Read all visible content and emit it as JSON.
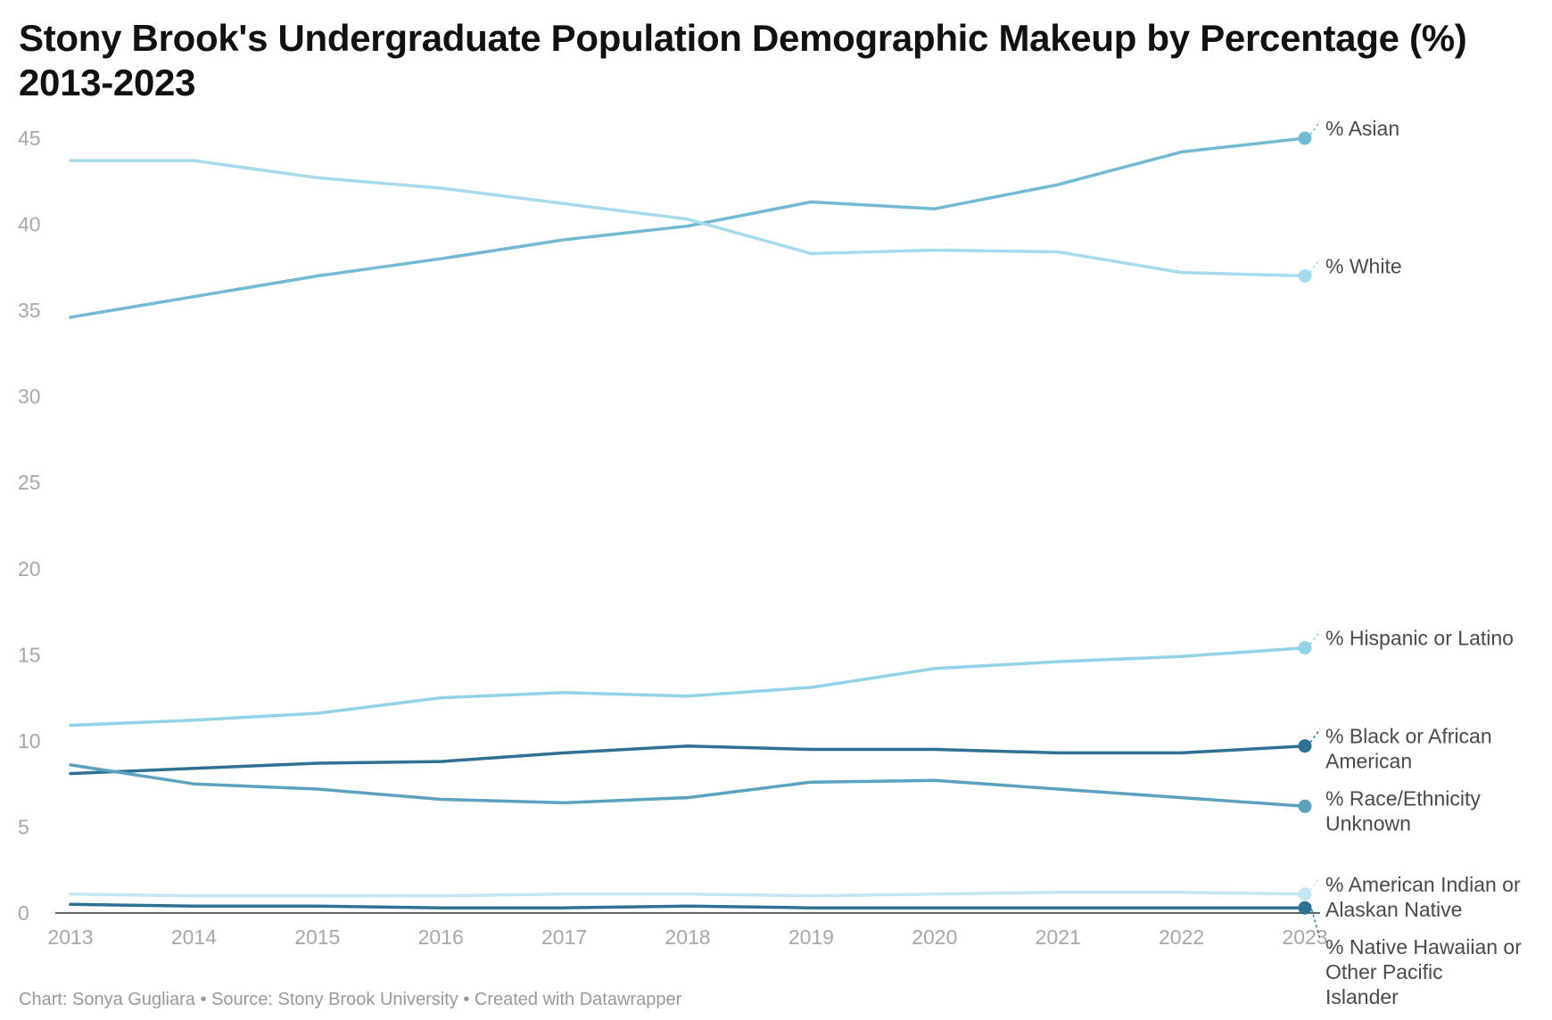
{
  "title_line1": "Stony Brook's Undergraduate Population Demographic Makeup by Percentage (%)",
  "title_line2": "2013-2023",
  "footer": "Chart: Sonya Gugliara • Source: Stony Brook University • Created with Datawrapper",
  "chart_data": {
    "type": "line",
    "title": "Stony Brook's Undergraduate Population Demographic Makeup by Percentage (%) 2013-2023",
    "xlabel": "",
    "ylabel": "",
    "x": [
      2013,
      2014,
      2015,
      2016,
      2017,
      2018,
      2019,
      2020,
      2021,
      2022,
      2023
    ],
    "ylim": [
      0,
      45
    ],
    "yticks": [
      0,
      5,
      10,
      15,
      20,
      25,
      30,
      35,
      40,
      45
    ],
    "grid": false,
    "series": [
      {
        "name": "% Asian",
        "label_lines": [
          "% Asian"
        ],
        "color": "#72b9d3",
        "values": [
          34.6,
          35.8,
          37.0,
          38.0,
          39.1,
          39.9,
          41.3,
          40.9,
          42.3,
          44.2,
          45.0
        ]
      },
      {
        "name": "% White",
        "label_lines": [
          "% White"
        ],
        "color": "#a6dbee",
        "values": [
          43.7,
          43.7,
          42.7,
          42.1,
          41.2,
          40.3,
          38.3,
          38.5,
          38.4,
          37.2,
          37.0
        ]
      },
      {
        "name": "% Hispanic or Latino",
        "label_lines": [
          "% Hispanic or Latino"
        ],
        "color": "#93d3ea",
        "values": [
          10.9,
          11.2,
          11.6,
          12.5,
          12.8,
          12.6,
          13.1,
          14.2,
          14.6,
          14.9,
          15.4
        ]
      },
      {
        "name": "% Black or African American",
        "label_lines": [
          "% Black or African",
          "American"
        ],
        "color": "#2f7195",
        "values": [
          8.1,
          8.4,
          8.7,
          8.8,
          9.3,
          9.7,
          9.5,
          9.5,
          9.3,
          9.3,
          9.7
        ]
      },
      {
        "name": "% Race/Ethnicity Unknown",
        "label_lines": [
          "% Race/Ethnicity",
          "Unknown"
        ],
        "color": "#5aa2c0",
        "values": [
          8.6,
          7.5,
          7.2,
          6.6,
          6.4,
          6.7,
          7.6,
          7.7,
          7.2,
          6.7,
          6.2
        ]
      },
      {
        "name": "% American Indian or Alaskan Native",
        "label_lines": [
          "% American Indian or",
          "Alaskan Native"
        ],
        "color": "#c3e6f3",
        "values": [
          1.1,
          1.0,
          1.0,
          1.0,
          1.1,
          1.1,
          1.0,
          1.1,
          1.2,
          1.2,
          1.1
        ]
      },
      {
        "name": "% Native Hawaiian or Other Pacific Islander",
        "label_lines": [
          "% Native Hawaiian or",
          "Other Pacific",
          "Islander"
        ],
        "color": "#2f7195",
        "values": [
          0.5,
          0.4,
          0.4,
          0.3,
          0.3,
          0.4,
          0.3,
          0.3,
          0.3,
          0.3,
          0.3
        ]
      }
    ]
  }
}
